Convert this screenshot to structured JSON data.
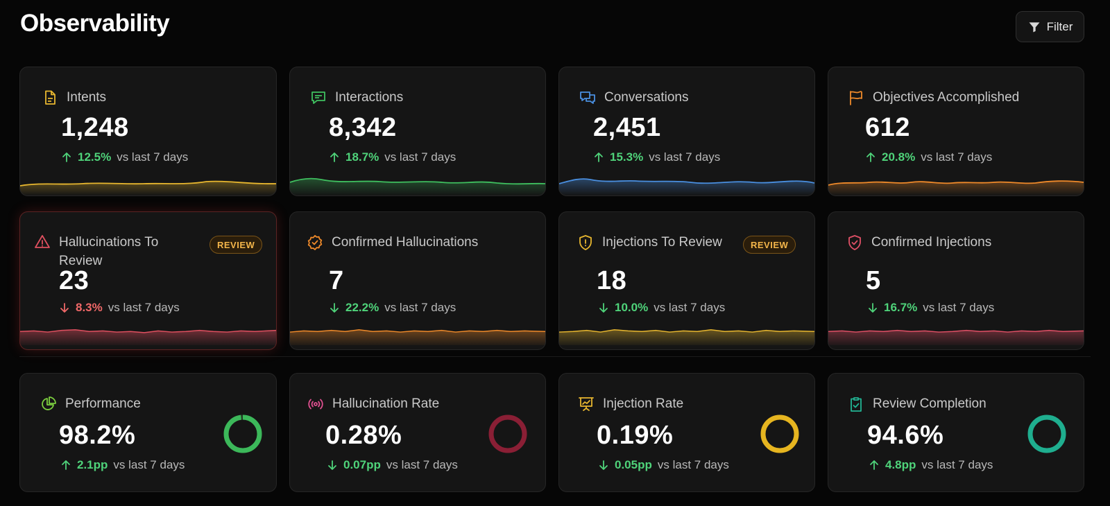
{
  "header": {
    "title": "Observability",
    "filter_label": "Filter"
  },
  "cards_row1": [
    {
      "label": "Intents",
      "value": "1,248",
      "delta": "12.5%",
      "direction": "up",
      "good": true,
      "compare": "vs last 7 days",
      "color": "#e8b72f",
      "icon": "document-icon"
    },
    {
      "label": "Interactions",
      "value": "8,342",
      "delta": "18.7%",
      "direction": "up",
      "good": true,
      "compare": "vs last 7 days",
      "color": "#3fbf5f",
      "icon": "chat-icon"
    },
    {
      "label": "Conversations",
      "value": "2,451",
      "delta": "15.3%",
      "direction": "up",
      "good": true,
      "compare": "vs last 7 days",
      "color": "#4a8fe0",
      "icon": "conversations-icon"
    },
    {
      "label": "Objectives Accomplished",
      "value": "612",
      "delta": "20.8%",
      "direction": "up",
      "good": true,
      "compare": "vs last 7 days",
      "color": "#ef8a2a",
      "icon": "flag-icon"
    }
  ],
  "cards_row2": [
    {
      "label": "Hallucinations To Review",
      "value": "23",
      "delta": "8.3%",
      "direction": "down",
      "good": false,
      "compare": "vs last 7 days",
      "color": "#e05060",
      "icon": "warning-icon",
      "badge": "REVIEW"
    },
    {
      "label": "Confirmed Hallucinations",
      "value": "7",
      "delta": "22.2%",
      "direction": "down",
      "good": true,
      "compare": "vs last 7 days",
      "color": "#ef8a2a",
      "icon": "badge-check-icon"
    },
    {
      "label": "Injections To Review",
      "value": "18",
      "delta": "10.0%",
      "direction": "down",
      "good": true,
      "compare": "vs last 7 days",
      "color": "#e8b72f",
      "icon": "shield-alert-icon",
      "badge": "REVIEW"
    },
    {
      "label": "Confirmed Injections",
      "value": "5",
      "delta": "16.7%",
      "direction": "down",
      "good": true,
      "compare": "vs last 7 days",
      "color": "#e05066",
      "icon": "shield-check-icon"
    }
  ],
  "cards_row3": [
    {
      "label": "Performance",
      "value": "98.2%",
      "delta": "2.1pp",
      "direction": "up",
      "good": true,
      "compare": "vs last 7 days",
      "color": "#3fbf5f",
      "ring_color": "#3cb85a",
      "ring_fraction": 0.982,
      "icon": "pie-chart-icon"
    },
    {
      "label": "Hallucination Rate",
      "value": "0.28%",
      "delta": "0.07pp",
      "direction": "down",
      "good": true,
      "compare": "vs last 7 days",
      "color": "#e05090",
      "ring_color": "#8a1f35",
      "ring_fraction": 1.0,
      "icon": "broadcast-icon"
    },
    {
      "label": "Injection Rate",
      "value": "0.19%",
      "delta": "0.05pp",
      "direction": "down",
      "good": true,
      "compare": "vs last 7 days",
      "color": "#e8b72f",
      "ring_color": "#e6b520",
      "ring_fraction": 1.0,
      "icon": "presentation-icon"
    },
    {
      "label": "Review Completion",
      "value": "94.6%",
      "delta": "4.8pp",
      "direction": "up",
      "good": true,
      "compare": "vs last 7 days",
      "color": "#22b594",
      "ring_color": "#1fae8f",
      "ring_fraction": 1.0,
      "icon": "clipboard-check-icon"
    }
  ]
}
